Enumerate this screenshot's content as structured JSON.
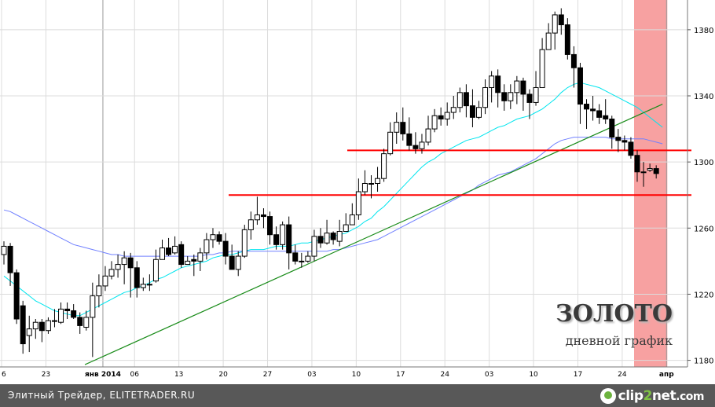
{
  "chart_title": "ЗОЛОТО",
  "chart_subtitle": "дневной график",
  "footer": {
    "credit": "Элитный Трейдер, ELITETRADER.RU",
    "logo_a": "clip",
    "logo_b": "2",
    "logo_c": "net",
    "logo_d": ".com"
  },
  "colors": {
    "up_candle": "#ffffff",
    "down_candle": "#000000",
    "support_line": "#ff0000",
    "trend_line": "#1a8c1a",
    "ma_fast": "#00e5ee",
    "ma_slow": "#7080ff",
    "highlight": "#f7a1a1"
  },
  "chart_data": {
    "type": "candlestick",
    "title": "ЗОЛОТО",
    "subtitle": "дневной график",
    "ylim": [
      1176,
      1398
    ],
    "y_ticks": [
      1180,
      1220,
      1260,
      1300,
      1340,
      1380
    ],
    "x_tick_labels": [
      "6",
      "23",
      "янв 2014",
      "06",
      "13",
      "20",
      "27",
      "03",
      "10",
      "17",
      "24",
      "03",
      "10",
      "17",
      "24",
      "апр"
    ],
    "candles": [
      [
        1244,
        1249,
        1252,
        1238
      ],
      [
        1249,
        1233,
        1251,
        1225
      ],
      [
        1233,
        1205,
        1235,
        1202
      ],
      [
        1213,
        1190,
        1216,
        1184
      ],
      [
        1195,
        1199,
        1207,
        1185
      ],
      [
        1199,
        1203,
        1205,
        1193
      ],
      [
        1203,
        1198,
        1205,
        1191
      ],
      [
        1198,
        1204,
        1206,
        1196
      ],
      [
        1204,
        1204,
        1211,
        1200
      ],
      [
        1203,
        1211,
        1215,
        1202
      ],
      [
        1211,
        1210,
        1215,
        1205
      ],
      [
        1210,
        1206,
        1214,
        1205
      ],
      [
        1206,
        1201,
        1209,
        1196
      ],
      [
        1200,
        1206,
        1210,
        1198
      ],
      [
        1206,
        1219,
        1227,
        1182
      ],
      [
        1219,
        1225,
        1232,
        1212
      ],
      [
        1225,
        1231,
        1237,
        1222
      ],
      [
        1231,
        1235,
        1240,
        1229
      ],
      [
        1235,
        1238,
        1244,
        1230
      ],
      [
        1238,
        1242,
        1246,
        1226
      ],
      [
        1242,
        1236,
        1245,
        1218
      ],
      [
        1236,
        1224,
        1240,
        1218
      ],
      [
        1224,
        1226,
        1230,
        1222
      ],
      [
        1226,
        1226,
        1232,
        1222
      ],
      [
        1228,
        1241,
        1247,
        1227
      ],
      [
        1241,
        1248,
        1253,
        1241
      ],
      [
        1248,
        1244,
        1254,
        1243
      ],
      [
        1245,
        1249,
        1255,
        1244
      ],
      [
        1250,
        1238,
        1252,
        1236
      ],
      [
        1238,
        1240,
        1243,
        1238
      ],
      [
        1241,
        1240,
        1244,
        1231
      ],
      [
        1240,
        1245,
        1248,
        1234
      ],
      [
        1245,
        1253,
        1257,
        1241
      ],
      [
        1253,
        1256,
        1260,
        1248
      ],
      [
        1256,
        1252,
        1258,
        1250
      ],
      [
        1252,
        1243,
        1257,
        1238
      ],
      [
        1243,
        1235,
        1250,
        1236
      ],
      [
        1235,
        1243,
        1246,
        1231
      ],
      [
        1243,
        1259,
        1262,
        1242
      ],
      [
        1259,
        1265,
        1270,
        1253
      ],
      [
        1265,
        1268,
        1279,
        1262
      ],
      [
        1268,
        1267,
        1272,
        1260
      ],
      [
        1267,
        1256,
        1270,
        1250
      ],
      [
        1256,
        1250,
        1261,
        1247
      ],
      [
        1250,
        1262,
        1264,
        1247
      ],
      [
        1262,
        1245,
        1267,
        1235
      ],
      [
        1245,
        1240,
        1250,
        1238
      ],
      [
        1240,
        1240,
        1245,
        1236
      ],
      [
        1240,
        1243,
        1246,
        1239
      ],
      [
        1243,
        1255,
        1259,
        1240
      ],
      [
        1255,
        1251,
        1260,
        1248
      ],
      [
        1251,
        1257,
        1265,
        1250
      ],
      [
        1257,
        1253,
        1258,
        1250
      ],
      [
        1252,
        1258,
        1265,
        1249
      ],
      [
        1258,
        1262,
        1269,
        1258
      ],
      [
        1262,
        1268,
        1275,
        1262
      ],
      [
        1268,
        1282,
        1290,
        1265
      ],
      [
        1282,
        1287,
        1295,
        1280
      ],
      [
        1287,
        1287,
        1292,
        1278
      ],
      [
        1287,
        1290,
        1297,
        1282
      ],
      [
        1290,
        1305,
        1308,
        1288
      ],
      [
        1305,
        1318,
        1324,
        1304
      ],
      [
        1318,
        1324,
        1330,
        1311
      ],
      [
        1324,
        1317,
        1333,
        1313
      ],
      [
        1317,
        1310,
        1327,
        1307
      ],
      [
        1310,
        1308,
        1318,
        1305
      ],
      [
        1308,
        1312,
        1317,
        1305
      ],
      [
        1312,
        1320,
        1328,
        1310
      ],
      [
        1320,
        1328,
        1332,
        1318
      ],
      [
        1328,
        1326,
        1333,
        1322
      ],
      [
        1326,
        1330,
        1336,
        1322
      ],
      [
        1330,
        1333,
        1340,
        1326
      ],
      [
        1333,
        1342,
        1345,
        1330
      ],
      [
        1342,
        1334,
        1347,
        1327
      ],
      [
        1334,
        1327,
        1344,
        1321
      ],
      [
        1327,
        1333,
        1337,
        1326
      ],
      [
        1333,
        1345,
        1350,
        1329
      ],
      [
        1345,
        1352,
        1355,
        1336
      ],
      [
        1352,
        1342,
        1356,
        1333
      ],
      [
        1342,
        1337,
        1347,
        1331
      ],
      [
        1337,
        1342,
        1347,
        1332
      ],
      [
        1342,
        1349,
        1352,
        1335
      ],
      [
        1349,
        1341,
        1351,
        1331
      ],
      [
        1341,
        1336,
        1344,
        1326
      ],
      [
        1336,
        1345,
        1355,
        1334
      ],
      [
        1345,
        1368,
        1375,
        1345
      ],
      [
        1368,
        1378,
        1384,
        1368
      ],
      [
        1378,
        1389,
        1391,
        1368
      ],
      [
        1389,
        1383,
        1393,
        1377
      ],
      [
        1383,
        1365,
        1387,
        1362
      ],
      [
        1365,
        1357,
        1370,
        1345
      ],
      [
        1357,
        1335,
        1360,
        1323
      ],
      [
        1335,
        1332,
        1338,
        1320
      ],
      [
        1332,
        1331,
        1340,
        1325
      ],
      [
        1331,
        1327,
        1335,
        1323
      ],
      [
        1328,
        1326,
        1338,
        1323
      ],
      [
        1326,
        1315,
        1328,
        1308
      ],
      [
        1315,
        1313,
        1320,
        1306
      ],
      [
        1313,
        1312,
        1316,
        1307
      ],
      [
        1312,
        1304,
        1315,
        1302
      ],
      [
        1304,
        1294,
        1307,
        1288
      ],
      [
        1294,
        1294,
        1300,
        1285
      ],
      [
        1295,
        1296,
        1299,
        1294
      ],
      [
        1296,
        1293,
        1298,
        1290
      ]
    ],
    "moving_averages": [
      {
        "values": [
          1231,
          1228,
          1225,
          1222,
          1219,
          1216,
          1214,
          1212,
          1210,
          1209,
          1208,
          1207,
          1207,
          1209,
          1211,
          1213,
          1215,
          1217,
          1219,
          1221,
          1222,
          1224,
          1225,
          1227,
          1229,
          1230,
          1232,
          1234,
          1236,
          1237,
          1238,
          1239,
          1240,
          1242,
          1243,
          1244,
          1244,
          1245,
          1246,
          1247,
          1247,
          1247,
          1248,
          1249,
          1249,
          1249,
          1250,
          1251,
          1251,
          1252,
          1253,
          1254,
          1255,
          1256,
          1257,
          1259,
          1261,
          1264,
          1266,
          1270,
          1273,
          1277,
          1281,
          1285,
          1289,
          1293,
          1297,
          1300,
          1302,
          1305,
          1307,
          1309,
          1311,
          1313,
          1314,
          1315,
          1317,
          1319,
          1321,
          1322,
          1324,
          1326,
          1327,
          1328,
          1330,
          1332,
          1335,
          1338,
          1342,
          1345,
          1347,
          1348,
          1347,
          1346,
          1345,
          1343,
          1341,
          1339,
          1337,
          1335,
          1333,
          1330,
          1327,
          1324,
          1321
        ]
      },
      {
        "values": [
          1271,
          1270,
          1268,
          1266,
          1264,
          1262,
          1260,
          1258,
          1256,
          1254,
          1252,
          1250,
          1249,
          1248,
          1247,
          1246,
          1245,
          1244,
          1244,
          1243,
          1243,
          1243,
          1243,
          1243,
          1243,
          1243,
          1243,
          1243,
          1243,
          1243,
          1243,
          1243,
          1244,
          1244,
          1245,
          1245,
          1246,
          1246,
          1246,
          1246,
          1246,
          1246,
          1246,
          1246,
          1246,
          1246,
          1246,
          1246,
          1246,
          1246,
          1246,
          1246,
          1247,
          1247,
          1248,
          1249,
          1250,
          1251,
          1252,
          1253,
          1255,
          1257,
          1259,
          1261,
          1263,
          1265,
          1267,
          1269,
          1271,
          1273,
          1275,
          1277,
          1279,
          1281,
          1283,
          1286,
          1288,
          1290,
          1292,
          1293,
          1294,
          1296,
          1298,
          1300,
          1302,
          1305,
          1308,
          1311,
          1313,
          1314,
          1315,
          1315,
          1315,
          1315,
          1315,
          1315,
          1314,
          1314,
          1314,
          1314,
          1314,
          1314,
          1313,
          1312,
          1311
        ]
      }
    ],
    "horizontal_levels": [
      1307,
      1280
    ],
    "trend_line": {
      "from": [
        1,
        1175
      ],
      "to": [
        104,
        1335
      ]
    },
    "highlight_range": [
      100,
      105
    ],
    "grid": true
  }
}
